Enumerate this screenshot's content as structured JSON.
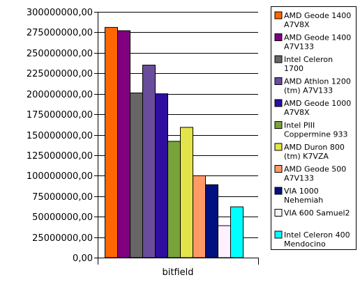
{
  "chart_data": {
    "type": "bar",
    "title": "",
    "xlabel": "",
    "ylabel": "",
    "categories": [
      "bitfield"
    ],
    "ylim": [
      0,
      300000000
    ],
    "y_ticks": [
      "0,00",
      "25000000,00",
      "50000000,00",
      "75000000,00",
      "100000000,00",
      "125000000,00",
      "150000000,00",
      "175000000,00",
      "200000000,00",
      "225000000,00",
      "250000000,00",
      "275000000,00",
      "300000000,00"
    ],
    "grid": true,
    "legend_position": "right",
    "series": [
      {
        "name": "AMD Geode 1400 A7V8X",
        "values": [
          281000000
        ],
        "color": "#ff6600",
        "label_lines": [
          "AMD Geode 1400",
          "A7V8X"
        ]
      },
      {
        "name": "AMD Geode 1400 A7V133",
        "values": [
          277000000
        ],
        "color": "#800080",
        "label_lines": [
          "AMD Geode 1400",
          "A7V133"
        ]
      },
      {
        "name": "Intel Celeron 1700",
        "values": [
          201000000
        ],
        "color": "#666666",
        "label_lines": [
          "Intel Celeron",
          "1700"
        ]
      },
      {
        "name": "AMD Athlon 1200 (tm) A7V133",
        "values": [
          235000000
        ],
        "color": "#6a4c9c",
        "label_lines": [
          "AMD Athlon 1200",
          "(tm) A7V133"
        ]
      },
      {
        "name": "AMD Geode 1000 A7V8X",
        "values": [
          200000000
        ],
        "color": "#2e0e9e",
        "label_lines": [
          "AMD Geode 1000",
          "A7V8X"
        ]
      },
      {
        "name": "Intel PIII Coppermine 933",
        "values": [
          142000000
        ],
        "color": "#77a33a",
        "label_lines": [
          "Intel PIII",
          "Coppermine 933"
        ]
      },
      {
        "name": "AMD Duron 800 (tm) K7VZA",
        "values": [
          159000000
        ],
        "color": "#e3e34a",
        "label_lines": [
          "AMD Duron 800",
          "(tm) K7VZA"
        ]
      },
      {
        "name": "AMD Geode 500 A7V133",
        "values": [
          100000000
        ],
        "color": "#ff9966",
        "label_lines": [
          "AMD Geode 500",
          "A7V133"
        ]
      },
      {
        "name": "VIA 1000 Nehemiah",
        "values": [
          89000000
        ],
        "color": "#001080",
        "label_lines": [
          "VIA 1000",
          "Nehemiah"
        ]
      },
      {
        "name": "VIA 600 Samuel2",
        "values": [
          39000000
        ],
        "color": "#fdf0ff",
        "label_lines": [
          "VIA 600 Samuel2"
        ]
      },
      {
        "name": "Intel Celeron 400 Mendocino",
        "values": [
          62000000
        ],
        "color": "#00ffff",
        "label_lines": [
          "Intel Celeron 400",
          "Mendocino"
        ]
      }
    ]
  }
}
